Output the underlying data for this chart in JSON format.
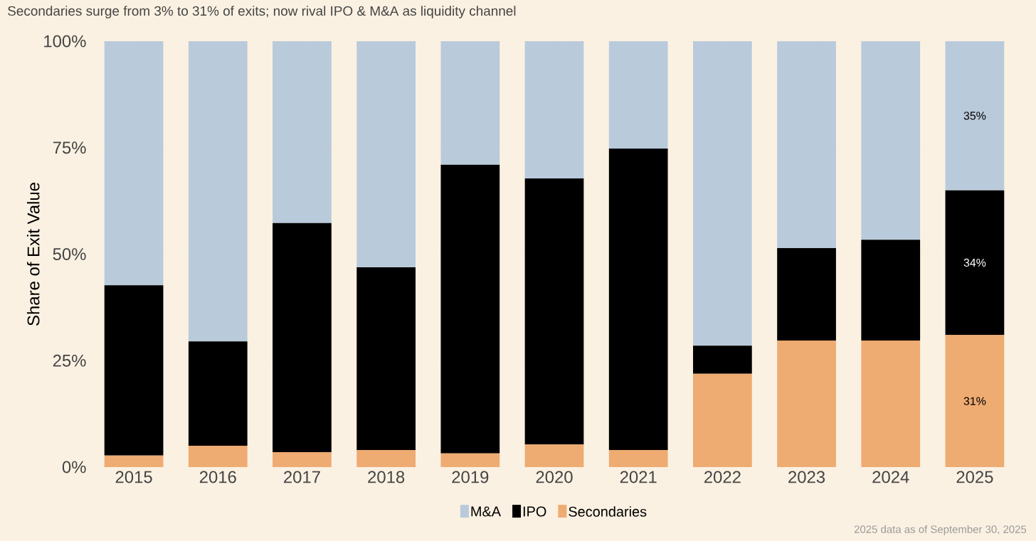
{
  "chart_data": {
    "type": "bar",
    "stacked": true,
    "title": "Secondaries surge from 3% to 31% of exits; now rival IPO & M&A as liquidity channel",
    "ylabel": "Share of Exit Value",
    "categories": [
      "2015",
      "2016",
      "2017",
      "2018",
      "2019",
      "2020",
      "2021",
      "2022",
      "2023",
      "2024",
      "2025"
    ],
    "series": [
      {
        "name": "Secondaries",
        "color": "#eeab72",
        "values": [
          2.7,
          5.0,
          3.5,
          4.0,
          3.2,
          5.3,
          4.0,
          21.9,
          29.7,
          29.7,
          31
        ],
        "value_labels": [
          null,
          null,
          null,
          null,
          null,
          null,
          null,
          null,
          null,
          null,
          "31%"
        ]
      },
      {
        "name": "IPO",
        "color": "#000000",
        "values": [
          40.0,
          24.5,
          53.8,
          42.9,
          67.8,
          62.5,
          70.8,
          6.6,
          21.7,
          23.7,
          34
        ],
        "value_labels": [
          null,
          null,
          null,
          null,
          null,
          null,
          null,
          null,
          null,
          null,
          "34%"
        ]
      },
      {
        "name": "M&A",
        "color": "#b9cadb",
        "values": [
          57.3,
          70.5,
          42.7,
          53.1,
          29.0,
          32.2,
          25.2,
          71.5,
          48.6,
          46.6,
          35
        ],
        "value_labels": [
          null,
          null,
          null,
          null,
          null,
          null,
          null,
          null,
          null,
          null,
          "35%"
        ]
      }
    ],
    "ylim": [
      0,
      100
    ],
    "yticks": [
      {
        "value": 0,
        "label": "0%"
      },
      {
        "value": 25,
        "label": "25%"
      },
      {
        "value": 50,
        "label": "50%"
      },
      {
        "value": 75,
        "label": "75%"
      },
      {
        "value": 100,
        "label": "100%"
      }
    ],
    "grid": "y",
    "legend": "bottom",
    "annotations": [
      "2025 data as of September 30, 2025"
    ]
  }
}
